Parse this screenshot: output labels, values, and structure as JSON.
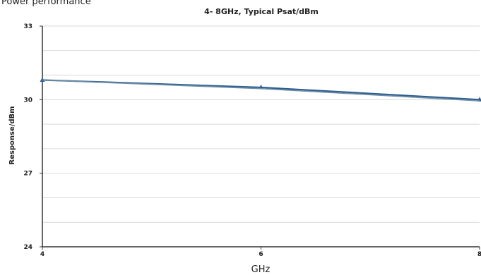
{
  "header": {
    "text": "Power performance"
  },
  "chart_data": {
    "type": "line",
    "title": "4- 8GHz, Typical Psat/dBm",
    "xlabel": "GHz",
    "ylabel": "Response/dBm",
    "xlim": [
      4,
      8
    ],
    "ylim": [
      24,
      33
    ],
    "x_ticks": [
      "4",
      "6",
      "8"
    ],
    "y_ticks": [
      "24",
      "27",
      "30",
      "33"
    ],
    "grid": "horizontal",
    "legend": "none",
    "series": [
      {
        "color": "#2f5f8f",
        "marker": "triangle",
        "x": [
          4,
          6,
          8
        ],
        "y": [
          30.8,
          30.5,
          30.0
        ]
      },
      {
        "color": "#6f8fa8",
        "marker": "none",
        "x": [
          4,
          6,
          8
        ],
        "y": [
          30.8,
          30.45,
          29.95
        ]
      }
    ],
    "colors": {
      "axis": "#333333",
      "grid": "#d9d9d9"
    }
  }
}
